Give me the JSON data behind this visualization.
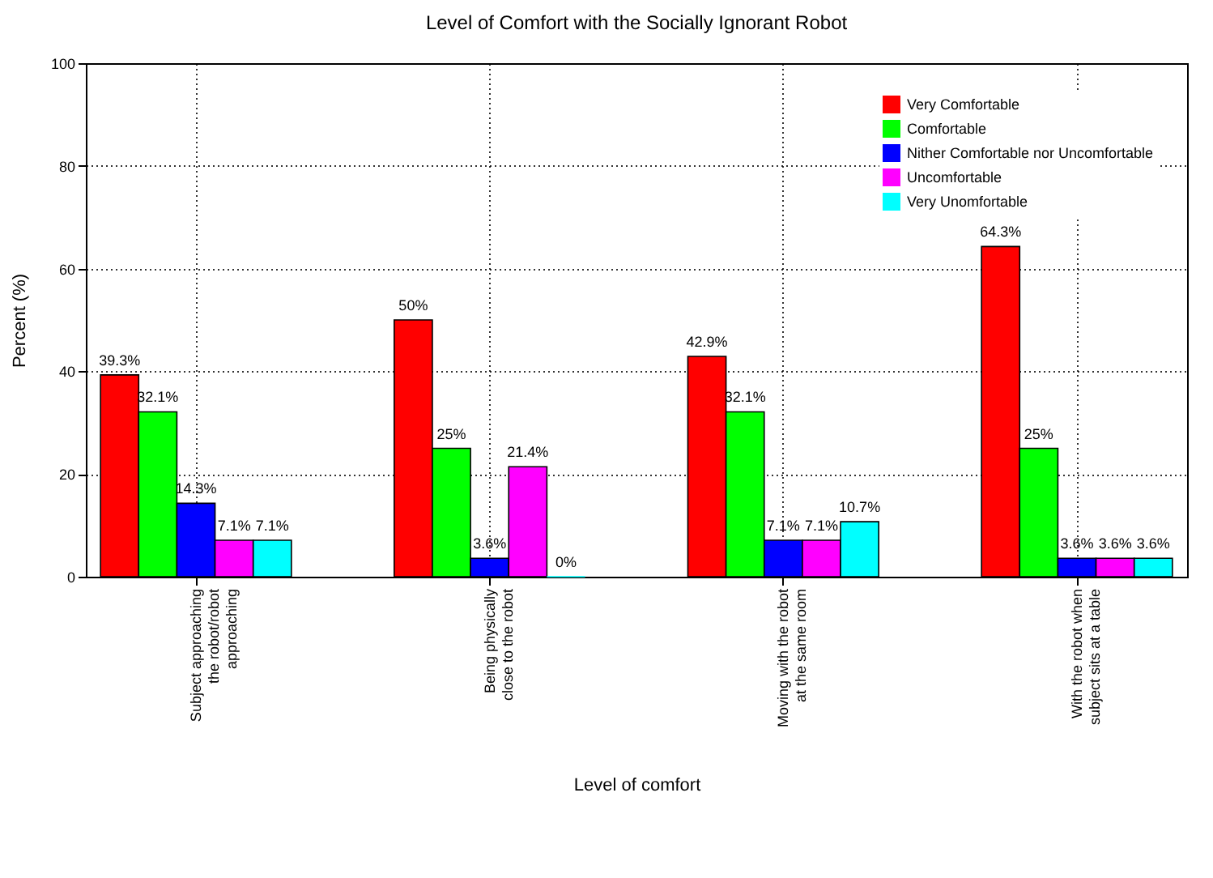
{
  "chart_data": {
    "type": "bar",
    "title": "Level of Comfort with the Socially Ignorant Robot",
    "xlabel": "Level of comfort",
    "ylabel": "Percent (%)",
    "categories": [
      "Subject approaching\nthe robot/robot\napproaching",
      "Being physically\nclose to the robot",
      "Moving with the robot\nat the same room",
      "With the robot when\nsubject sits at a table"
    ],
    "series": [
      {
        "name": "Very Comfortable",
        "color": "#ff0000",
        "values": [
          39.3,
          50,
          42.9,
          64.3
        ],
        "value_labels": [
          "39.3%",
          "50%",
          "42.9%",
          "64.3%"
        ]
      },
      {
        "name": "Comfortable",
        "color": "#00ff00",
        "values": [
          32.1,
          25,
          32.1,
          25
        ],
        "value_labels": [
          "32.1%",
          "25%",
          "32.1%",
          "25%"
        ]
      },
      {
        "name": "Nither Comfortable nor Uncomfortable",
        "color": "#0000ff",
        "values": [
          14.3,
          3.6,
          7.1,
          3.6
        ],
        "value_labels": [
          "14.3%",
          "3.6%",
          "7.1%",
          "3.6%"
        ]
      },
      {
        "name": "Uncomfortable",
        "color": "#ff00ff",
        "values": [
          7.1,
          21.4,
          7.1,
          3.6
        ],
        "value_labels": [
          "7.1%",
          "21.4%",
          "7.1%",
          "3.6%"
        ]
      },
      {
        "name": "Very Unomfortable",
        "color": "#00ffff",
        "values": [
          7.1,
          0,
          10.7,
          3.6
        ],
        "value_labels": [
          "7.1%",
          "0%",
          "10.7%",
          "3.6%"
        ]
      }
    ],
    "ylim": [
      0,
      100
    ],
    "yticks": [
      0,
      20,
      40,
      60,
      80,
      100
    ],
    "grid": true,
    "legend": "top right"
  }
}
